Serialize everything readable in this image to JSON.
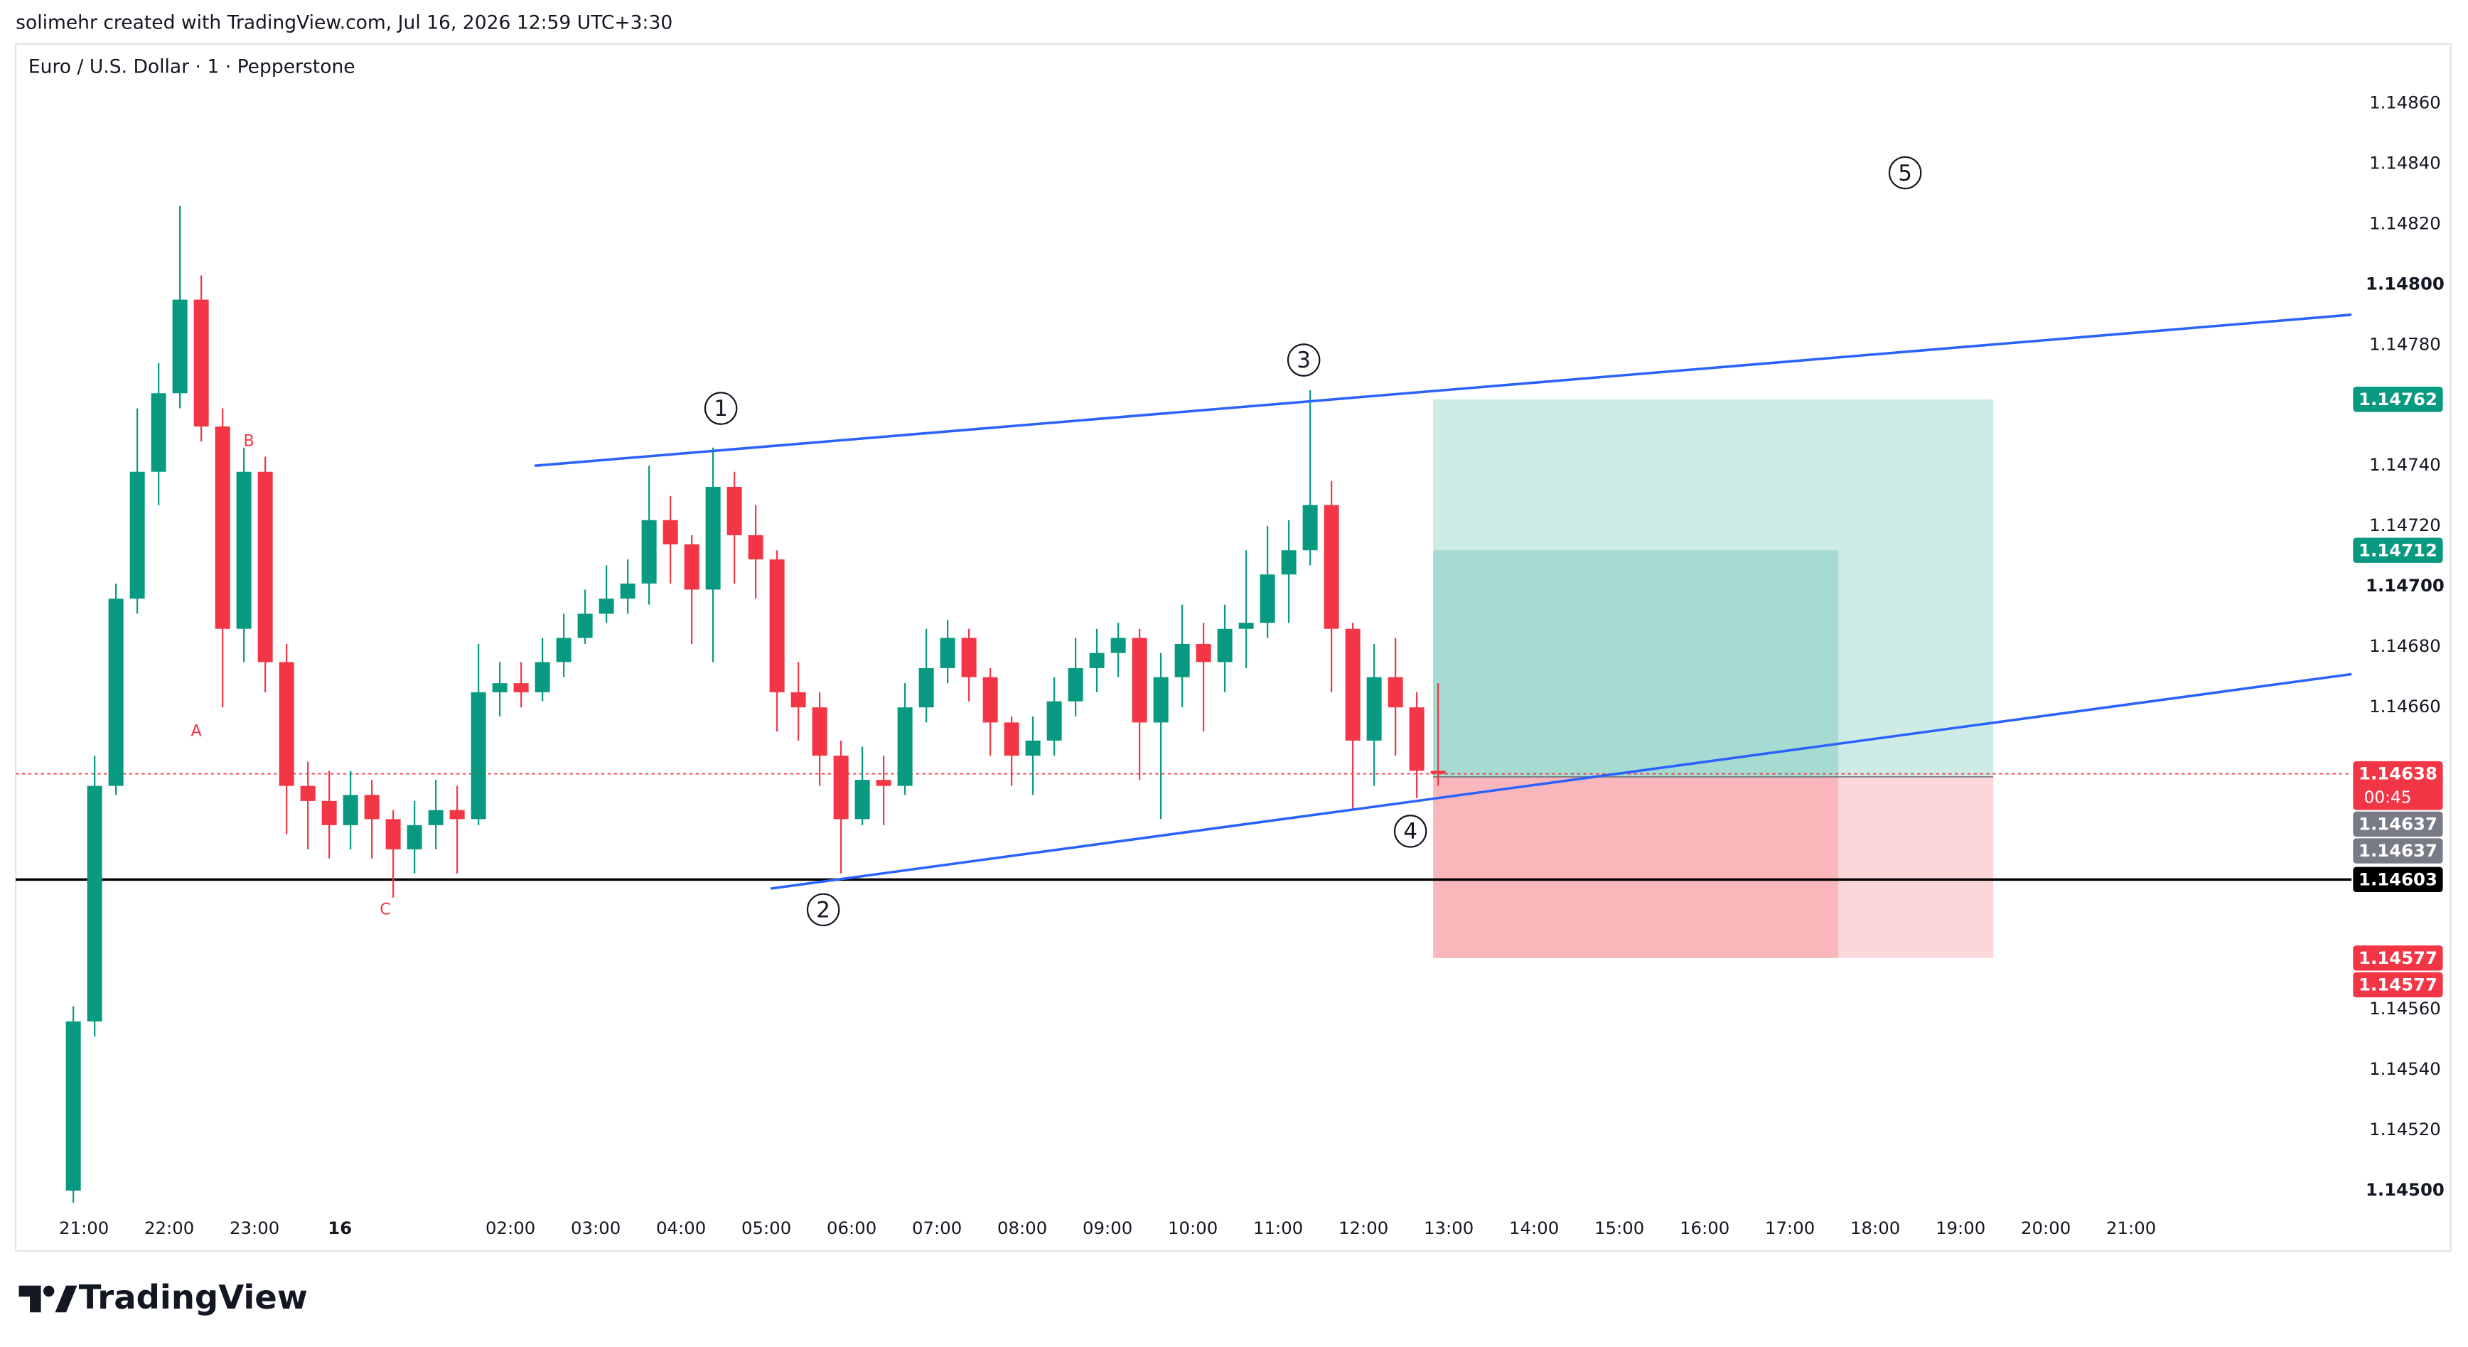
{
  "header": {
    "credit": "solimehr created with TradingView.com, Jul 16, 2026 12:59 UTC+3:30"
  },
  "logo": "TradingView",
  "chart_data": {
    "type": "candlestick",
    "title": "Euro / U.S. Dollar · 1 · Pepperstone",
    "up_color": "#089981",
    "down_color": "#f23645",
    "x": [
      "15 20:45",
      "15 21:00",
      "15 21:15",
      "15 21:30",
      "15 21:45",
      "15 22:00",
      "15 22:15",
      "15 22:30",
      "15 22:45",
      "15 23:00",
      "15 23:15",
      "15 23:30",
      "15 23:45",
      "16 00:00",
      "16 00:15",
      "16 00:30",
      "16 00:45",
      "16 01:00",
      "16 01:15",
      "16 01:30",
      "16 01:45",
      "16 02:00",
      "16 02:15",
      "16 02:30",
      "16 02:45",
      "16 03:00",
      "16 03:15",
      "16 03:30",
      "16 03:45",
      "16 04:00",
      "16 04:15",
      "16 04:30",
      "16 04:45",
      "16 05:00",
      "16 05:15",
      "16 05:30",
      "16 05:45",
      "16 06:00",
      "16 06:15",
      "16 06:30",
      "16 06:45",
      "16 07:00",
      "16 07:15",
      "16 07:30",
      "16 07:45",
      "16 08:00",
      "16 08:15",
      "16 08:30",
      "16 08:45",
      "16 09:00",
      "16 09:15",
      "16 09:30",
      "16 09:45",
      "16 10:00",
      "16 10:15",
      "16 10:30",
      "16 10:45",
      "16 11:00",
      "16 11:15",
      "16 11:30",
      "16 11:45",
      "16 12:00",
      "16 12:15",
      "16 12:30",
      "16 12:45"
    ],
    "open": [
      1.145,
      1.14556,
      1.14634,
      1.14696,
      1.14738,
      1.14764,
      1.14795,
      1.14753,
      1.14686,
      1.14738,
      1.14675,
      1.14634,
      1.14629,
      1.14621,
      1.14631,
      1.14623,
      1.14613,
      1.14621,
      1.14626,
      1.14623,
      1.14665,
      1.14668,
      1.14665,
      1.14675,
      1.14683,
      1.14691,
      1.14696,
      1.14701,
      1.14722,
      1.14714,
      1.14699,
      1.14733,
      1.14717,
      1.14709,
      1.14665,
      1.1466,
      1.14644,
      1.14623,
      1.14636,
      1.14634,
      1.1466,
      1.14673,
      1.14683,
      1.1467,
      1.14655,
      1.14644,
      1.14649,
      1.14662,
      1.14673,
      1.14678,
      1.14683,
      1.14655,
      1.1467,
      1.14681,
      1.14675,
      1.14686,
      1.14688,
      1.14704,
      1.14712,
      1.14727,
      1.14686,
      1.14649,
      1.1467,
      1.1466,
      1.14639
    ],
    "high": [
      1.14561,
      1.14644,
      1.14701,
      1.14759,
      1.14774,
      1.14826,
      1.14803,
      1.14759,
      1.14746,
      1.14743,
      1.14681,
      1.14642,
      1.14639,
      1.14639,
      1.14636,
      1.14626,
      1.14629,
      1.14636,
      1.14634,
      1.14681,
      1.14675,
      1.14675,
      1.14683,
      1.14691,
      1.14699,
      1.14707,
      1.14709,
      1.1474,
      1.1473,
      1.14717,
      1.14746,
      1.14738,
      1.14727,
      1.14712,
      1.14675,
      1.14665,
      1.14649,
      1.14647,
      1.14644,
      1.14668,
      1.14686,
      1.14689,
      1.14686,
      1.14673,
      1.14657,
      1.14657,
      1.1467,
      1.14683,
      1.14686,
      1.14688,
      1.14686,
      1.14678,
      1.14694,
      1.14688,
      1.14694,
      1.14712,
      1.1472,
      1.14722,
      1.14765,
      1.14735,
      1.14688,
      1.14681,
      1.14683,
      1.14665,
      1.14668
    ],
    "low": [
      1.14496,
      1.14551,
      1.14631,
      1.14691,
      1.14727,
      1.14759,
      1.14748,
      1.1466,
      1.14675,
      1.14665,
      1.14618,
      1.14613,
      1.1461,
      1.14613,
      1.1461,
      1.14597,
      1.14605,
      1.14613,
      1.14605,
      1.14621,
      1.14657,
      1.1466,
      1.14662,
      1.1467,
      1.14681,
      1.14688,
      1.14691,
      1.14694,
      1.14701,
      1.14681,
      1.14675,
      1.14701,
      1.14696,
      1.14652,
      1.14649,
      1.14634,
      1.14605,
      1.14621,
      1.14621,
      1.14631,
      1.14655,
      1.14668,
      1.14662,
      1.14644,
      1.14634,
      1.14631,
      1.14644,
      1.14657,
      1.14665,
      1.1467,
      1.14636,
      1.14623,
      1.1466,
      1.14652,
      1.14665,
      1.14673,
      1.14683,
      1.14688,
      1.14707,
      1.14665,
      1.14626,
      1.14634,
      1.14644,
      1.1463,
      1.14634
    ],
    "close": [
      1.14556,
      1.14634,
      1.14696,
      1.14738,
      1.14764,
      1.14795,
      1.14753,
      1.14686,
      1.14738,
      1.14675,
      1.14634,
      1.14629,
      1.14621,
      1.14631,
      1.14623,
      1.14613,
      1.14621,
      1.14626,
      1.14623,
      1.14665,
      1.14668,
      1.14665,
      1.14675,
      1.14683,
      1.14691,
      1.14696,
      1.14701,
      1.14722,
      1.14714,
      1.14699,
      1.14733,
      1.14717,
      1.14709,
      1.14665,
      1.1466,
      1.14644,
      1.14623,
      1.14636,
      1.14634,
      1.1466,
      1.14673,
      1.14683,
      1.1467,
      1.14655,
      1.14644,
      1.14649,
      1.14662,
      1.14673,
      1.14678,
      1.14683,
      1.14655,
      1.1467,
      1.14681,
      1.14675,
      1.14686,
      1.14688,
      1.14704,
      1.14712,
      1.14727,
      1.14686,
      1.14649,
      1.1467,
      1.1466,
      1.14639,
      1.14638
    ],
    "xlim": [
      "15 20:12",
      "16 23:35"
    ],
    "xticks": [
      {
        "value": "15 21:00",
        "label": "21:00"
      },
      {
        "value": "15 22:00",
        "label": "22:00"
      },
      {
        "value": "15 23:00",
        "label": "23:00"
      },
      {
        "value": "16 00:00",
        "label": "16",
        "bold": true
      },
      {
        "value": "16 02:00",
        "label": "02:00"
      },
      {
        "value": "16 03:00",
        "label": "03:00"
      },
      {
        "value": "16 04:00",
        "label": "04:00"
      },
      {
        "value": "16 05:00",
        "label": "05:00"
      },
      {
        "value": "16 06:00",
        "label": "06:00"
      },
      {
        "value": "16 07:00",
        "label": "07:00"
      },
      {
        "value": "16 08:00",
        "label": "08:00"
      },
      {
        "value": "16 09:00",
        "label": "09:00"
      },
      {
        "value": "16 10:00",
        "label": "10:00"
      },
      {
        "value": "16 11:00",
        "label": "11:00"
      },
      {
        "value": "16 12:00",
        "label": "12:00"
      },
      {
        "value": "16 13:00",
        "label": "13:00"
      },
      {
        "value": "16 14:00",
        "label": "14:00"
      },
      {
        "value": "16 15:00",
        "label": "15:00"
      },
      {
        "value": "16 16:00",
        "label": "16:00"
      },
      {
        "value": "16 17:00",
        "label": "17:00"
      },
      {
        "value": "16 18:00",
        "label": "18:00"
      },
      {
        "value": "16 19:00",
        "label": "19:00"
      },
      {
        "value": "16 20:00",
        "label": "20:00"
      },
      {
        "value": "16 21:00",
        "label": "21:00"
      }
    ],
    "ylim": [
      1.1448,
      1.14889
    ],
    "yticks": [
      {
        "value": 1.1486,
        "label": "1.14860"
      },
      {
        "value": 1.1484,
        "label": "1.14840"
      },
      {
        "value": 1.1482,
        "label": "1.14820"
      },
      {
        "value": 1.148,
        "label": "1.14800",
        "bold": true
      },
      {
        "value": 1.1478,
        "label": "1.14780"
      },
      {
        "value": 1.1474,
        "label": "1.14740"
      },
      {
        "value": 1.1472,
        "label": "1.14720"
      },
      {
        "value": 1.147,
        "label": "1.14700",
        "bold": true
      },
      {
        "value": 1.1468,
        "label": "1.14680"
      },
      {
        "value": 1.1466,
        "label": "1.14660"
      },
      {
        "value": 1.1456,
        "label": "1.14560"
      },
      {
        "value": 1.1454,
        "label": "1.14540"
      },
      {
        "value": 1.1452,
        "label": "1.14520"
      },
      {
        "value": 1.145,
        "label": "1.14500",
        "bold": true
      }
    ],
    "grid": false,
    "price_tags": [
      {
        "value": 1.14762,
        "label": "1.14762",
        "color": "#089981"
      },
      {
        "value": 1.14712,
        "label": "1.14712",
        "color": "#089981"
      },
      {
        "value": 1.14638,
        "label": "1.14638",
        "color": "#f23645",
        "countdown": "00:45"
      },
      {
        "value": 1.14637,
        "label": "1.14637",
        "color": "#787b86"
      },
      {
        "value": 1.14637,
        "label": "1.14637",
        "color": "#787b86"
      },
      {
        "value": 1.14603,
        "label": "1.14603",
        "color": "#000000"
      },
      {
        "value": 1.14577,
        "label": "1.14577",
        "color": "#f23645"
      },
      {
        "value": 1.14577,
        "label": "1.14577",
        "color": "#f23645"
      }
    ],
    "hlines": [
      {
        "value": 1.14603,
        "color": "#000000",
        "style": "solid"
      },
      {
        "value": 1.14638,
        "color": "#f23645",
        "style": "dotted"
      }
    ],
    "trendlines": [
      {
        "points": [
          [
            "16 02:17",
            1.1474
          ],
          [
            "16 23:35",
            1.1479
          ]
        ],
        "color": "#2962ff"
      },
      {
        "points": [
          [
            "16 05:03",
            1.146
          ],
          [
            "16 23:35",
            1.14671
          ]
        ],
        "color": "#2962ff"
      }
    ],
    "positions": [
      {
        "start": "16 12:49",
        "end": "16 19:23",
        "entry": 1.14637,
        "target": 1.14762,
        "stop": 1.14577
      },
      {
        "start": "16 12:49",
        "end": "16 17:34",
        "entry": 1.14637,
        "target": 1.14712,
        "stop": 1.14577
      }
    ],
    "wave_labels": [
      {
        "label": "1",
        "x": "16 04:28",
        "y": 1.14759
      },
      {
        "label": "2",
        "x": "16 05:40",
        "y": 1.14593
      },
      {
        "label": "3",
        "x": "16 11:18",
        "y": 1.14775
      },
      {
        "label": "4",
        "x": "16 12:33",
        "y": 1.14619
      },
      {
        "label": "5",
        "x": "16 18:21",
        "y": 1.14837
      }
    ],
    "correction_labels": [
      {
        "label": "A",
        "x": "15 22:19",
        "y": 1.14652
      },
      {
        "label": "B",
        "x": "15 22:56",
        "y": 1.14748
      },
      {
        "label": "C",
        "x": "16 00:32",
        "y": 1.14593
      }
    ],
    "correction_color": "#f23645"
  }
}
